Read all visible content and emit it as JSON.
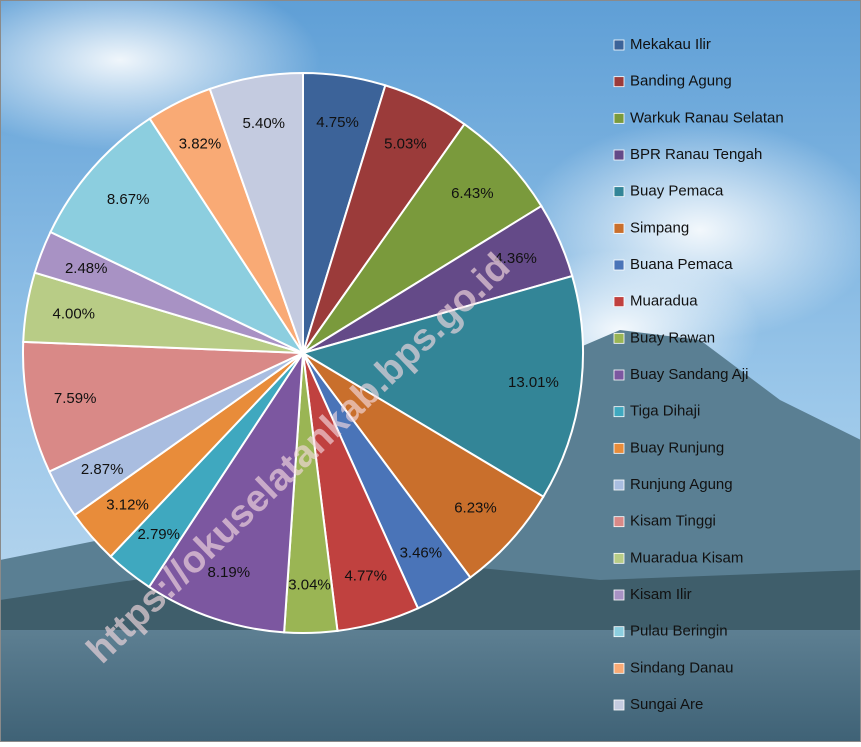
{
  "chart_data": {
    "type": "pie",
    "categories": [
      "Mekakau Ilir",
      "Banding Agung",
      "Warkuk Ranau Selatan",
      "BPR Ranau Tengah",
      "Buay Pemaca",
      "Simpang",
      "Buana Pemaca",
      "Muaradua",
      "Buay Rawan",
      "Buay Sandang Aji",
      "Tiga Dihaji",
      "Buay Runjung",
      "Runjung Agung",
      "Kisam Tinggi",
      "Muaradua Kisam",
      "Kisam Ilir",
      "Pulau Beringin",
      "Sindang Danau",
      "Sungai Are"
    ],
    "values": [
      4.75,
      5.03,
      6.43,
      4.36,
      13.01,
      6.23,
      3.46,
      4.77,
      3.04,
      8.19,
      2.79,
      3.12,
      2.87,
      7.59,
      4.0,
      2.48,
      8.67,
      3.82,
      5.4
    ],
    "value_labels": [
      "4.75%",
      "5.03%",
      "6.43%",
      "4.36%",
      "13.01%",
      "6.23%",
      "3.46%",
      "4.77%",
      "3.04%",
      "8.19%",
      "2.79%",
      "3.12%",
      "2.87%",
      "7.59%",
      "4.00%",
      "2.48%",
      "8.67%",
      "3.82%",
      "5.40%"
    ],
    "colors": [
      "#3c6399",
      "#9b3b3a",
      "#7a9a3c",
      "#644a88",
      "#338597",
      "#c96f2c",
      "#4a74b8",
      "#c0413f",
      "#9ab554",
      "#7c57a0",
      "#3fa8bf",
      "#e88c3a",
      "#a9bde0",
      "#d98987",
      "#b8cc86",
      "#a892c4",
      "#8ccedf",
      "#f9aa75",
      "#c4cbe0"
    ],
    "legend": "right"
  },
  "watermark": "https://okuselatankab.bps.go.id"
}
